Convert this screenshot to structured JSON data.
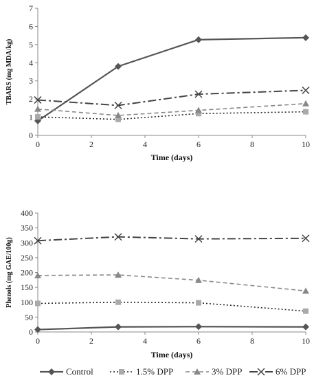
{
  "chart_data": [
    {
      "type": "line",
      "title": "",
      "xlabel": "Time (days)",
      "ylabel": "TBARS (mg MDA/kg)",
      "xlim": [
        0,
        10
      ],
      "ylim": [
        0,
        7
      ],
      "x_ticks": [
        0,
        2,
        4,
        6,
        8,
        10
      ],
      "y_ticks": [
        0,
        1,
        2,
        3,
        4,
        5,
        6,
        7
      ],
      "x": [
        0,
        3,
        6,
        10
      ],
      "series": [
        {
          "name": "Control",
          "values": [
            0.8,
            3.8,
            5.27,
            5.38
          ]
        },
        {
          "name": "1.5% DPP",
          "values": [
            1.02,
            0.88,
            1.2,
            1.3
          ]
        },
        {
          "name": "3% DPP",
          "values": [
            1.45,
            1.1,
            1.38,
            1.75
          ]
        },
        {
          "name": "6% DPP",
          "values": [
            1.95,
            1.65,
            2.27,
            2.48
          ]
        }
      ]
    },
    {
      "type": "line",
      "title": "",
      "xlabel": "Time (days)",
      "ylabel": "Phenols (mg GAE/100g)",
      "xlim": [
        0,
        10
      ],
      "ylim": [
        0,
        400
      ],
      "x_ticks": [
        0,
        2,
        4,
        6,
        8,
        10
      ],
      "y_ticks": [
        0,
        50,
        100,
        150,
        200,
        250,
        300,
        350,
        400
      ],
      "x": [
        0,
        3,
        6,
        10
      ],
      "series": [
        {
          "name": "Control",
          "values": [
            8,
            17,
            18,
            17
          ]
        },
        {
          "name": "1.5% DPP",
          "values": [
            96,
            100,
            98,
            70
          ]
        },
        {
          "name": "3% DPP",
          "values": [
            190,
            192,
            174,
            138
          ]
        },
        {
          "name": "6% DPP",
          "values": [
            307,
            320,
            313,
            315
          ]
        }
      ]
    }
  ],
  "legend": {
    "items": [
      {
        "label": "Control",
        "series": 0
      },
      {
        "label": "1.5% DPP",
        "series": 1
      },
      {
        "label": "3% DPP",
        "series": 2
      },
      {
        "label": "6% DPP",
        "series": 3
      }
    ]
  }
}
